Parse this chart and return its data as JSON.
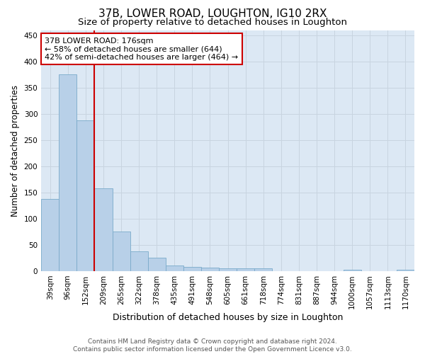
{
  "title": "37B, LOWER ROAD, LOUGHTON, IG10 2RX",
  "subtitle": "Size of property relative to detached houses in Loughton",
  "xlabel": "Distribution of detached houses by size in Loughton",
  "ylabel": "Number of detached properties",
  "footer_line1": "Contains HM Land Registry data © Crown copyright and database right 2024.",
  "footer_line2": "Contains public sector information licensed under the Open Government Licence v3.0.",
  "categories": [
    "39sqm",
    "96sqm",
    "152sqm",
    "209sqm",
    "265sqm",
    "322sqm",
    "378sqm",
    "435sqm",
    "491sqm",
    "548sqm",
    "605sqm",
    "661sqm",
    "718sqm",
    "774sqm",
    "831sqm",
    "887sqm",
    "944sqm",
    "1000sqm",
    "1057sqm",
    "1113sqm",
    "1170sqm"
  ],
  "values": [
    137,
    375,
    288,
    158,
    75,
    38,
    25,
    10,
    8,
    6,
    5,
    5,
    5,
    0,
    0,
    0,
    0,
    3,
    0,
    0,
    3
  ],
  "bar_color": "#b8d0e8",
  "bar_edge_color": "#7aaaca",
  "bar_edge_width": 0.6,
  "grid_color": "#c8d4e0",
  "background_color": "#dce8f4",
  "marker_line_color": "#cc0000",
  "annotation_text": "37B LOWER ROAD: 176sqm\n← 58% of detached houses are smaller (644)\n42% of semi-detached houses are larger (464) →",
  "annotation_box_color": "#cc0000",
  "ylim": [
    0,
    460
  ],
  "yticks": [
    0,
    50,
    100,
    150,
    200,
    250,
    300,
    350,
    400,
    450
  ],
  "title_fontsize": 11,
  "subtitle_fontsize": 9.5,
  "xlabel_fontsize": 9,
  "ylabel_fontsize": 8.5,
  "tick_fontsize": 7.5,
  "annotation_fontsize": 8,
  "footer_fontsize": 6.5
}
